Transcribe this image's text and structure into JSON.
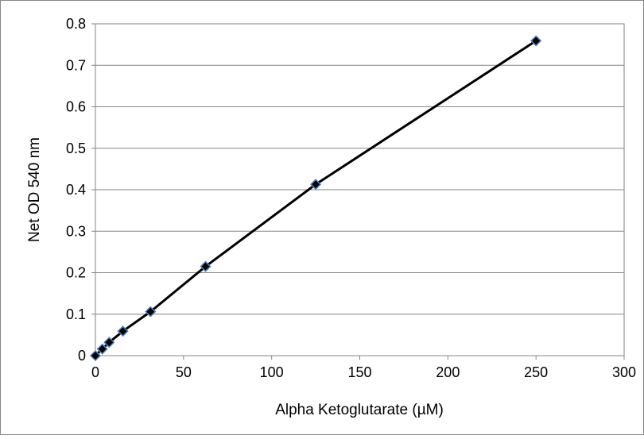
{
  "chart_data": {
    "type": "scatter",
    "title": "",
    "xlabel": "Alpha Ketoglutarate (µM)",
    "ylabel": "Net OD 540 nm",
    "xlim": [
      0,
      300
    ],
    "ylim": [
      0,
      0.8
    ],
    "x_ticks": [
      "0",
      "50",
      "100",
      "150",
      "200",
      "250",
      "300"
    ],
    "y_ticks": [
      "0",
      "0.1",
      "0.2",
      "0.3",
      "0.4",
      "0.5",
      "0.6",
      "0.7",
      "0.8"
    ],
    "grid": "horizontal",
    "legend": "none",
    "series": [
      {
        "x": [
          0,
          3.9,
          7.8,
          15.6,
          31.25,
          62.5,
          125,
          250
        ],
        "y": [
          0,
          0.016,
          0.032,
          0.059,
          0.106,
          0.215,
          0.413,
          0.759
        ]
      }
    ],
    "colors": {
      "marker_fill": "#000000",
      "marker_edge": "#4f81bd",
      "line": "#000000",
      "grid": "#868686",
      "frame": "#868686"
    }
  }
}
